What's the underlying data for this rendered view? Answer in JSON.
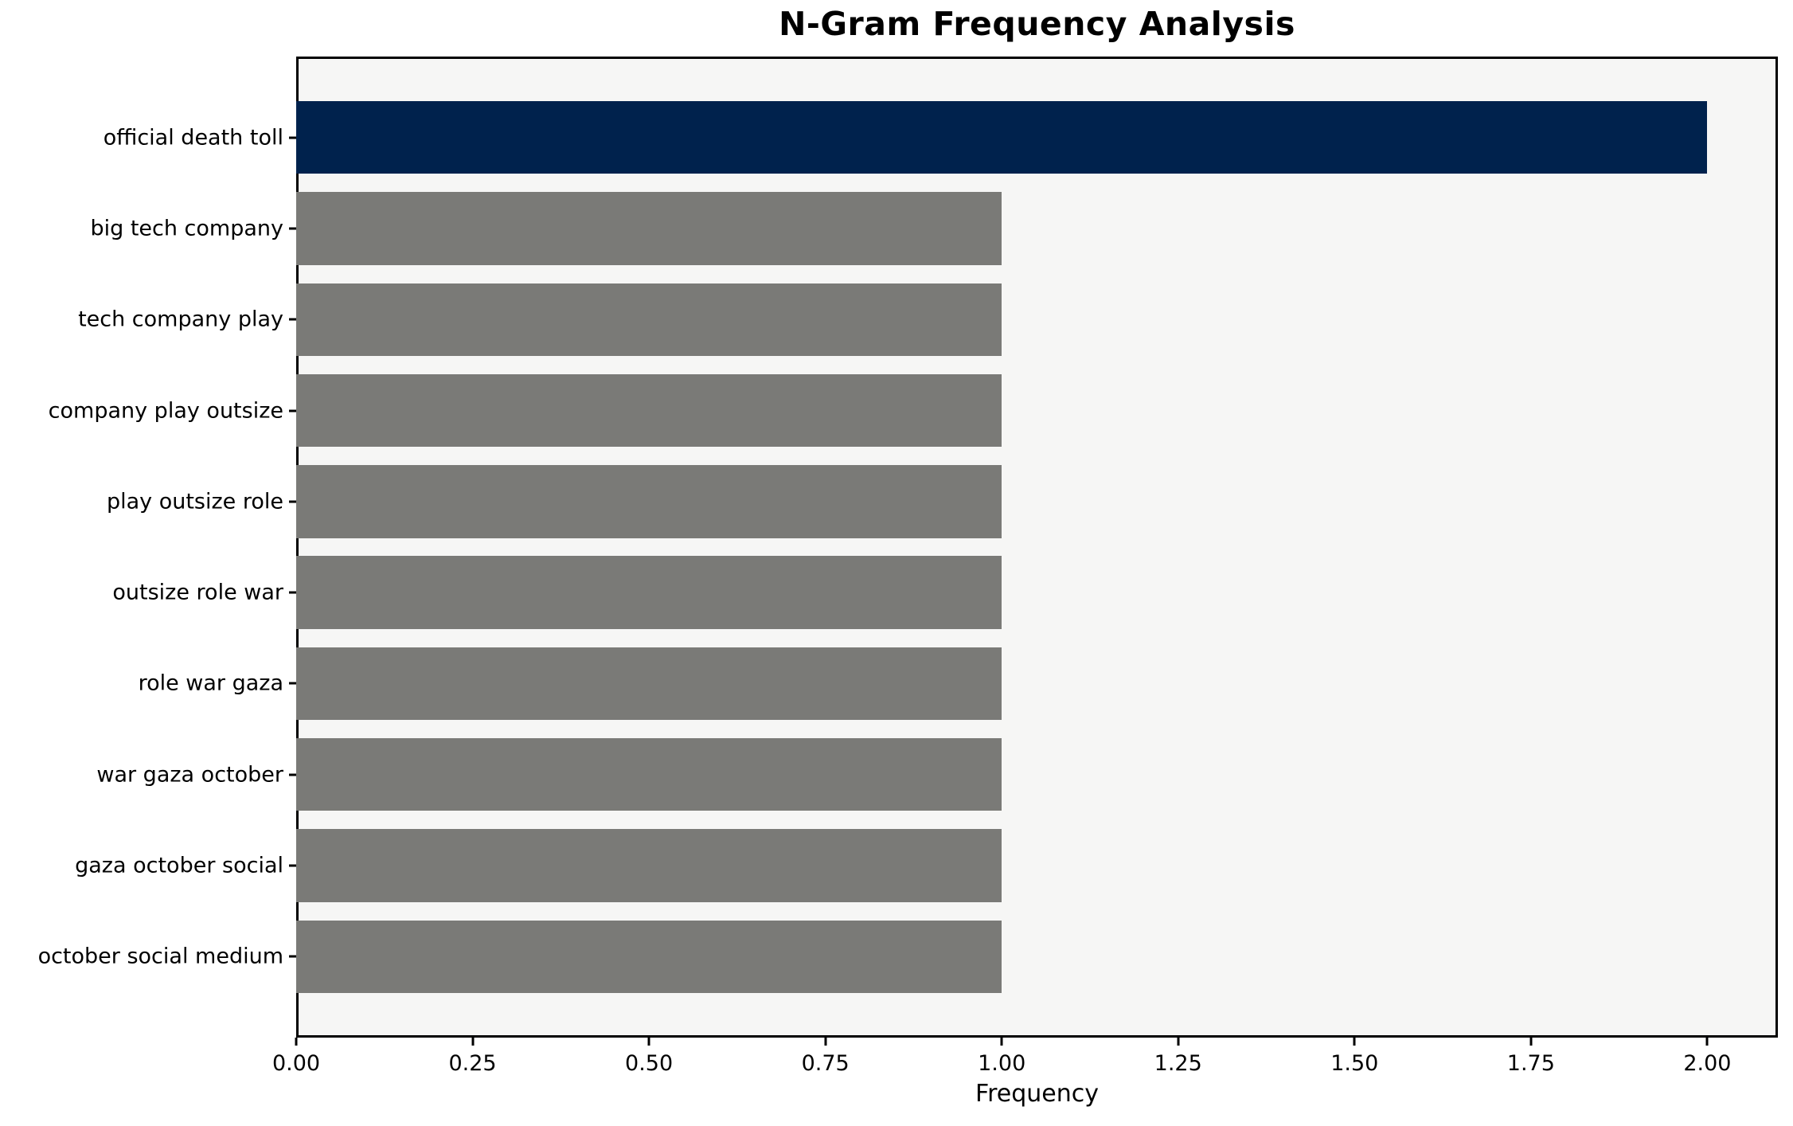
{
  "chart_data": {
    "type": "bar",
    "orientation": "horizontal",
    "title": "N-Gram Frequency Analysis",
    "xlabel": "Frequency",
    "ylabel": "",
    "categories": [
      "official death toll",
      "big tech company",
      "tech company play",
      "company play outsize",
      "play outsize role",
      "outsize role war",
      "role war gaza",
      "war gaza october",
      "gaza october social",
      "october social medium"
    ],
    "values": [
      2,
      1,
      1,
      1,
      1,
      1,
      1,
      1,
      1,
      1
    ],
    "xticks": [
      {
        "value": 0.0,
        "label": "0.00"
      },
      {
        "value": 0.25,
        "label": "0.25"
      },
      {
        "value": 0.5,
        "label": "0.50"
      },
      {
        "value": 0.75,
        "label": "0.75"
      },
      {
        "value": 1.0,
        "label": "1.00"
      },
      {
        "value": 1.25,
        "label": "1.25"
      },
      {
        "value": 1.5,
        "label": "1.50"
      },
      {
        "value": 1.75,
        "label": "1.75"
      },
      {
        "value": 2.0,
        "label": "2.00"
      }
    ],
    "xlim": [
      0,
      2.1
    ],
    "bar_height_fraction": 0.8,
    "grid": false,
    "legend": "none",
    "colors": {
      "highlight_bar": "#00224d",
      "default_bar": "#7a7a77",
      "plot_background": "#f6f6f5",
      "figure_background": "#ffffff",
      "spine": "#000000",
      "text": "#000000"
    }
  }
}
